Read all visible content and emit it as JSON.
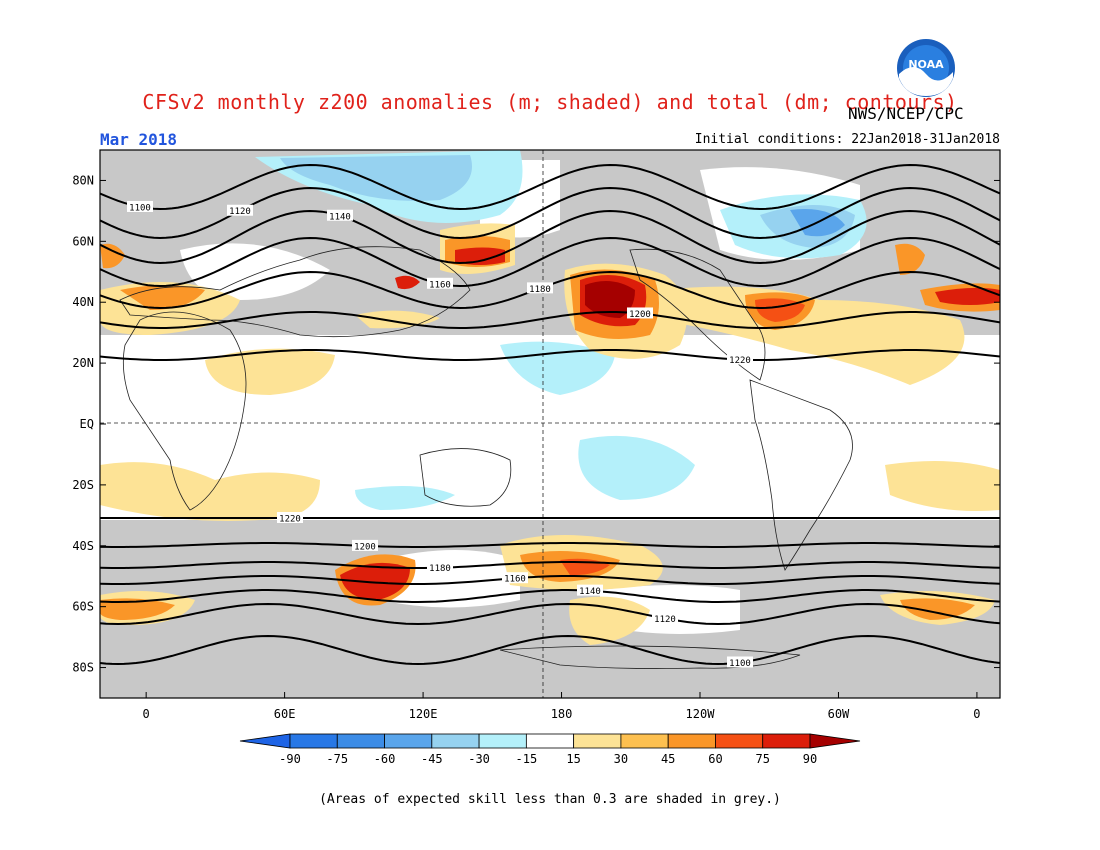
{
  "header": {
    "title": "CFSv2 monthly z200 anomalies (m; shaded) and total (dm; contours)",
    "agency": "NWS/NCEP/CPC",
    "month": "Mar 2018",
    "initial_conditions": "Initial conditions: 22Jan2018-31Jan2018"
  },
  "logo": {
    "name": "noaa-logo",
    "text": "NOAA"
  },
  "axes": {
    "lat_labels": [
      "80N",
      "60N",
      "40N",
      "20N",
      "EQ",
      "20S",
      "40S",
      "60S",
      "80S"
    ],
    "lat_values": [
      80,
      60,
      40,
      20,
      0,
      -20,
      -40,
      -60,
      -80
    ],
    "lon_labels": [
      "0",
      "60E",
      "120E",
      "180",
      "120W",
      "60W",
      "0"
    ],
    "lon_values": [
      0,
      60,
      120,
      180,
      240,
      300,
      360
    ],
    "lon_range": [
      -20,
      370
    ],
    "lat_range": [
      -90,
      90
    ]
  },
  "colorbar": {
    "levels": [
      "-90",
      "-75",
      "-60",
      "-45",
      "-30",
      "-15",
      "15",
      "30",
      "45",
      "60",
      "75",
      "90"
    ],
    "colors": [
      "#1e64e6",
      "#2878e6",
      "#3c8ce6",
      "#5aa5eb",
      "#96d2f0",
      "#b4f0fa",
      "#ffffff",
      "#fde396",
      "#fdc050",
      "#fa9628",
      "#f55014",
      "#dc1e0a",
      "#a50000"
    ]
  },
  "contours": {
    "nh": [
      {
        "label": "1100"
      },
      {
        "label": "1120"
      },
      {
        "label": "1140"
      },
      {
        "label": "1160"
      },
      {
        "label": "1180"
      },
      {
        "label": "1200"
      },
      {
        "label": "1220"
      }
    ],
    "sh": [
      {
        "label": "1220"
      },
      {
        "label": "1200"
      },
      {
        "label": "1180"
      },
      {
        "label": "1160"
      },
      {
        "label": "1140"
      },
      {
        "label": "1120"
      },
      {
        "label": "1100"
      }
    ]
  },
  "note": "(Areas of expected skill less than 0.3 are shaded in grey.)"
}
